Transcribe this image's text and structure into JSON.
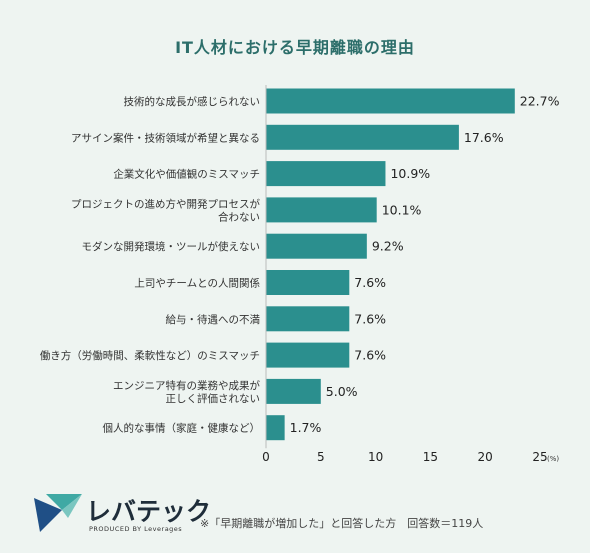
{
  "chart_data": {
    "type": "bar",
    "orientation": "horizontal",
    "title": "IT人材における早期離職の理由",
    "categories": [
      [
        "技術的な成長が感じられない"
      ],
      [
        "アサイン案件・技術領域が希望と異なる"
      ],
      [
        "企業文化や価値観のミスマッチ"
      ],
      [
        "プロジェクトの進め方や開発プロセスが",
        "合わない"
      ],
      [
        "モダンな開発環境・ツールが使えない"
      ],
      [
        "上司やチームとの人間関係"
      ],
      [
        "給与・待遇への不満"
      ],
      [
        "働き方（労働時間、柔軟性など）のミスマッチ"
      ],
      [
        "エンジニア特有の業務や成果が",
        "正しく評価されない"
      ],
      [
        "個人的な事情（家庭・健康など）"
      ]
    ],
    "values": [
      22.7,
      17.6,
      10.9,
      10.1,
      9.2,
      7.6,
      7.6,
      7.6,
      5.0,
      1.7
    ],
    "value_labels": [
      "22.7%",
      "17.6%",
      "10.9%",
      "10.1%",
      "9.2%",
      "7.6%",
      "7.6%",
      "7.6%",
      "5.0%",
      "1.7%"
    ],
    "xlim": [
      0,
      25
    ],
    "xticks": [
      "0",
      "5",
      "10",
      "15",
      "20",
      "25"
    ],
    "x_unit": "(%)",
    "bar_color": "#2b8f8e",
    "grid": false
  },
  "footer": {
    "note": "※「早期離職が増加した」と回答した方　回答数＝119人"
  },
  "logo": {
    "name": "レバテック",
    "sub": "PRODUCED BY Leverages"
  },
  "colors": {
    "background": "#eef4f1",
    "title": "#2c6e6a",
    "bar": "#2b8f8e"
  }
}
